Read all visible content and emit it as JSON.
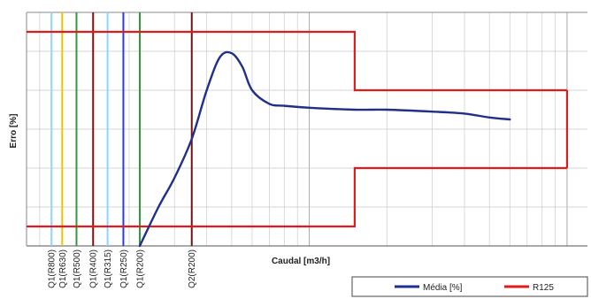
{
  "chart_data": {
    "type": "line",
    "title": "",
    "xlabel": "Caudal [m3/h]",
    "ylabel": "Erro [%]",
    "x_scale": "log",
    "xlim": [
      0.08,
      12
    ],
    "ylim": [
      -6,
      6
    ],
    "grid": true,
    "x_tick_labels_shown": false,
    "y_tick_labels_shown": false,
    "reference_lines": [
      {
        "label": "Q1(R800)",
        "x": 0.1,
        "color": "#8fd3ff"
      },
      {
        "label": "Q1(R630)",
        "x": 0.11,
        "color": "#f2c200"
      },
      {
        "label": "Q1(R500)",
        "x": 0.125,
        "color": "#2e9a3c"
      },
      {
        "label": "Q1(R400)",
        "x": 0.145,
        "color": "#7a1010"
      },
      {
        "label": "Q1(R315)",
        "x": 0.165,
        "color": "#8fd3ff"
      },
      {
        "label": "Q1(R250)",
        "x": 0.19,
        "color": "#2a3ed6"
      },
      {
        "label": "Q1(R200)",
        "x": 0.22,
        "color": "#2e9a3c"
      },
      {
        "label": "Q2(R200)",
        "x": 0.35,
        "color": "#7a1010"
      }
    ],
    "series": [
      {
        "name": "Média [%]",
        "color": "#1f2f8a",
        "x": [
          0.22,
          0.26,
          0.3,
          0.35,
          0.4,
          0.45,
          0.5,
          0.55,
          0.6,
          0.7,
          0.8,
          1.0,
          1.5,
          2.0,
          3.0,
          4.0,
          5.0,
          6.0
        ],
        "y": [
          -6.0,
          -4.0,
          -2.5,
          -0.5,
          2.0,
          3.7,
          3.9,
          3.2,
          2.0,
          1.3,
          1.2,
          1.1,
          1.0,
          1.0,
          0.9,
          0.8,
          0.6,
          0.5
        ]
      },
      {
        "name": "R125",
        "color": "#e01b1b",
        "upper": {
          "x": [
            0.08,
            1.5,
            1.5,
            10
          ],
          "y": [
            5,
            5,
            2,
            2
          ]
        },
        "lower": {
          "x": [
            0.08,
            1.5,
            1.5,
            10
          ],
          "y": [
            -5,
            -5,
            -2,
            -2
          ]
        },
        "right_edge": {
          "x": 10,
          "y": [
            -2,
            2
          ]
        }
      }
    ],
    "legend": {
      "placement": "bottom-right",
      "entries": [
        "Média [%]",
        "R125"
      ]
    }
  }
}
